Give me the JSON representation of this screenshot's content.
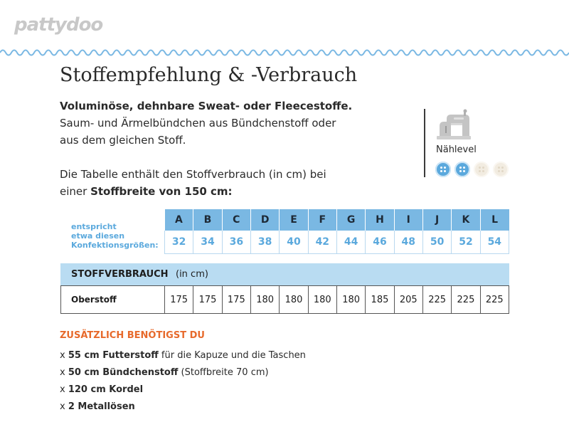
{
  "brand": {
    "logo_text": "pattydoo"
  },
  "title": "Stoffempfehlung & -Verbrauch",
  "intro": {
    "line1": "Voluminöse, dehnbare Sweat- oder Fleecestoffe.",
    "line2": "Saum- und Ärmelbündchen aus Bündchenstoff oder",
    "line3": "aus dem gleichen Stoff.",
    "line4": "Die Tabelle enthält den Stoffverbrauch (in cm) bei",
    "line5_prefix": "einer ",
    "line5_bold": "Stoffbreite von 150 cm:"
  },
  "sewing_level": {
    "label": "Nählevel",
    "level": 2,
    "max": 4,
    "icon": "sewing-machine-icon"
  },
  "sizes": {
    "label_lines": [
      "entspricht",
      "etwa diesen",
      "Konfektionsgrößen:"
    ],
    "letters": [
      "A",
      "B",
      "C",
      "D",
      "E",
      "F",
      "G",
      "H",
      "I",
      "J",
      "K",
      "L"
    ],
    "values": [
      "32",
      "34",
      "36",
      "38",
      "40",
      "42",
      "44",
      "46",
      "48",
      "50",
      "52",
      "54"
    ]
  },
  "consumption": {
    "title": "STOFFVERBRAUCH",
    "unit": "(in cm)",
    "rows": [
      {
        "name": "Oberstoff",
        "values": [
          "175",
          "175",
          "175",
          "180",
          "180",
          "180",
          "180",
          "185",
          "205",
          "225",
          "225",
          "225"
        ]
      }
    ]
  },
  "extras": {
    "title": "ZUSÄTZLICH BENÖTIGST DU",
    "items": [
      {
        "prefix": "x ",
        "bold": "55 cm Futterstoff",
        "rest": " für die Kapuze und die Taschen"
      },
      {
        "prefix": "x ",
        "bold": "50 cm Bündchenstoff",
        "rest": " (Stoffbreite 70 cm)"
      },
      {
        "prefix": "x ",
        "bold": "120 cm Kordel",
        "rest": ""
      },
      {
        "prefix": "x ",
        "bold": "2 Metallösen",
        "rest": ""
      }
    ]
  },
  "colors": {
    "accent_blue": "#5ba9dd",
    "header_blue": "#7ab8e3",
    "light_blue": "#b9dcf2",
    "orange": "#e76a2c"
  }
}
